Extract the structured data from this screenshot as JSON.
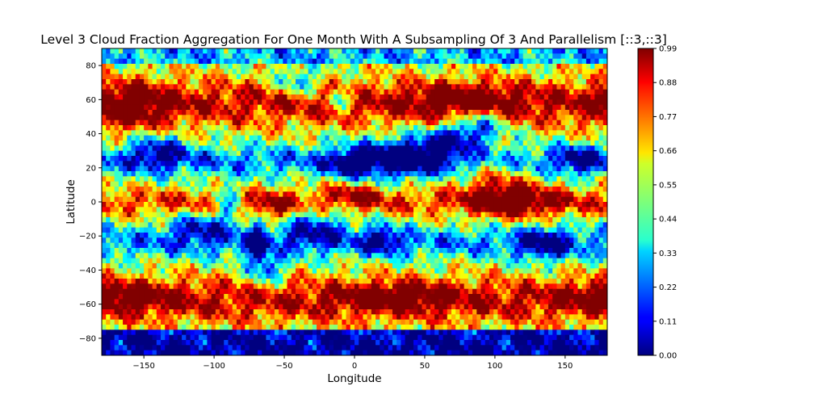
{
  "chart_data": {
    "type": "heatmap",
    "title": "Level 3 Cloud Fraction Aggregation For One Month With A Subsampling Of 3 And Parallelism [::3,::3]",
    "xlabel": "Longitude",
    "ylabel": "Latitude",
    "xlim": [
      -180,
      180
    ],
    "ylim": [
      -90,
      90
    ],
    "x_ticks": [
      -150,
      -100,
      -50,
      0,
      50,
      100,
      150
    ],
    "y_ticks": [
      -80,
      -60,
      -40,
      -20,
      0,
      20,
      40,
      60,
      80
    ],
    "colormap": "jet",
    "colorbar": {
      "range": [
        0.0,
        0.99
      ],
      "ticks": [
        "0.00",
        "0.11",
        "0.22",
        "0.33",
        "0.44",
        "0.55",
        "0.66",
        "0.77",
        "0.88",
        "0.99"
      ]
    },
    "grid": false,
    "field_description": "Global monthly cloud fraction map; high values (dark red) over mid-latitude storm tracks and tropics, low values (blue) over subtropical oceans, deserts and Antarctica."
  }
}
